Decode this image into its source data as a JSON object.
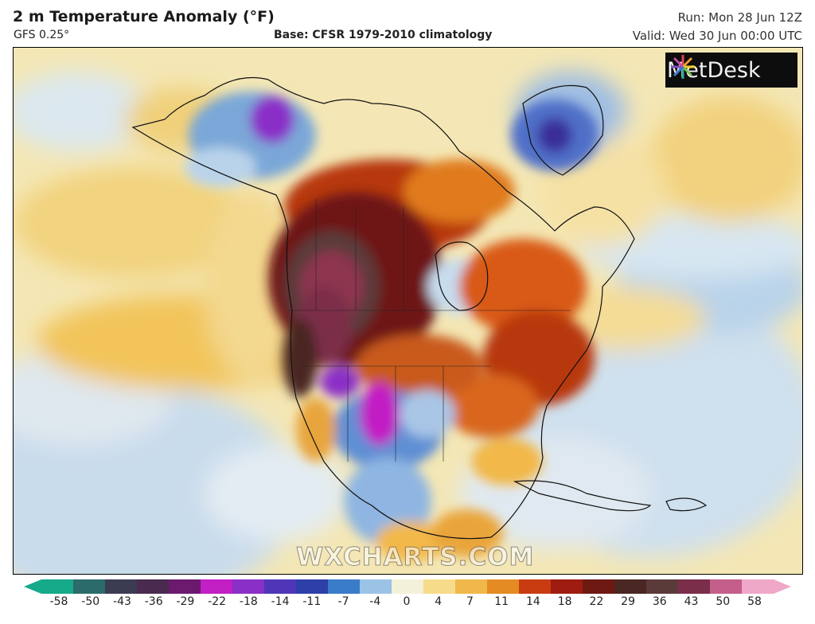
{
  "header": {
    "title": "2 m Temperature Anomaly (°F)",
    "model": "GFS 0.25°",
    "base": "Base: CFSR 1979-2010 climatology",
    "run": "Run: Mon 28 Jun 12Z",
    "valid": "Valid: Wed 30 Jun 00:00 UTC"
  },
  "logo": {
    "text": "MetDesk"
  },
  "watermark": "WXCHARTS.COM",
  "colorbar": {
    "ticks": [
      "-58",
      "-50",
      "-43",
      "-36",
      "-29",
      "-22",
      "-18",
      "-14",
      "-11",
      "-7",
      "-4",
      "0",
      "4",
      "7",
      "11",
      "14",
      "18",
      "22",
      "29",
      "36",
      "43",
      "50",
      "58"
    ],
    "colors": [
      "#16a98a",
      "#2b6b6b",
      "#3b3b52",
      "#4a2a4e",
      "#6b1a6e",
      "#c21fc4",
      "#8a2fc8",
      "#4f36b8",
      "#2d3fa8",
      "#3a7cc9",
      "#9bc3e6",
      "#f3f1d9",
      "#f6dc8a",
      "#f0b84a",
      "#e48b24",
      "#c93c12",
      "#9e1c10",
      "#6e1912",
      "#4a2722",
      "#5b3a3a",
      "#7b2e4a",
      "#c45e8a",
      "#f0a8c8"
    ]
  }
}
